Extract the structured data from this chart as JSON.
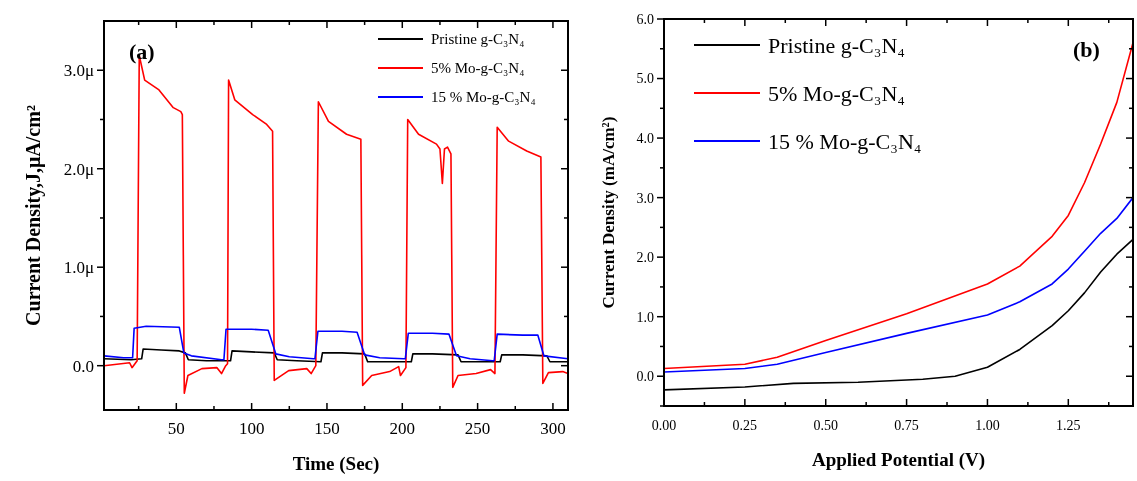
{
  "chart_data": [
    {
      "type": "line",
      "xlabel": "Time (Sec)",
      "ylabel": "Current Density,J,μA/cm²",
      "annotations": [
        "(a)"
      ],
      "legend": "top right",
      "xlim": [
        2,
        310
      ],
      "ylim": [
        -0.45,
        3.5
      ],
      "xticks": [
        {
          "value": 25,
          "label": null
        },
        50,
        {
          "value": 75,
          "label": null
        },
        100,
        {
          "value": 125,
          "label": null
        },
        150,
        {
          "value": 175,
          "label": null
        },
        200,
        {
          "value": 225,
          "label": null
        },
        250,
        {
          "value": 275,
          "label": null
        },
        300
      ],
      "yticks": [
        {
          "value": 0,
          "label": "0.0"
        },
        {
          "value": 0.5,
          "label": null
        },
        {
          "value": 1,
          "label": "1.0μ"
        },
        {
          "value": 1.5,
          "label": null
        },
        {
          "value": 2,
          "label": "2.0μ"
        },
        {
          "value": 2.5,
          "label": null
        },
        {
          "value": 3,
          "label": "3.0μ"
        }
      ],
      "series": [
        {
          "name": "Pristine g-C₃N₄",
          "color": "#000000",
          "x": [
            2,
            20,
            27,
            28,
            40,
            52,
            56,
            58,
            70,
            86,
            87,
            100,
            115,
            117,
            130,
            146,
            147,
            160,
            175,
            177,
            190,
            206,
            207,
            220,
            237,
            239,
            250,
            265,
            266,
            280,
            296,
            298,
            310
          ],
          "values": [
            0.07,
            0.06,
            0.07,
            0.17,
            0.16,
            0.15,
            0.13,
            0.06,
            0.05,
            0.05,
            0.15,
            0.14,
            0.13,
            0.06,
            0.05,
            0.04,
            0.13,
            0.13,
            0.12,
            0.04,
            0.04,
            0.04,
            0.12,
            0.12,
            0.11,
            0.04,
            0.04,
            0.04,
            0.11,
            0.11,
            0.1,
            0.04,
            0.04
          ]
        },
        {
          "name": "5% Mo-g-C₃N₄",
          "color": "#ff0000",
          "x": [
            2,
            19,
            20.6,
            24,
            25.4,
            29,
            38.5,
            48,
            53,
            54,
            55.3,
            57.7,
            67,
            77,
            80,
            82.8,
            84,
            84.7,
            88.8,
            100.7,
            110,
            113.9,
            115,
            124.6,
            136.6,
            139.5,
            142.6,
            144.3,
            151,
            163,
            172.5,
            173.7,
            179.7,
            191.6,
            197.6,
            198.8,
            202.4,
            203.6,
            210.8,
            222.7,
            225,
            226.6,
            228,
            230,
            232.3,
            233.5,
            237,
            249,
            258.6,
            261.5,
            263,
            270.6,
            282.6,
            292,
            293.3,
            297,
            306.5,
            310
          ],
          "values": [
            0,
            0.03,
            -0.02,
            0.05,
            3.15,
            2.9,
            2.8,
            2.62,
            2.58,
            2.55,
            -0.28,
            -0.1,
            -0.03,
            -0.02,
            -0.08,
            0,
            0.02,
            2.9,
            2.7,
            2.55,
            2.45,
            2.38,
            -0.15,
            -0.05,
            -0.03,
            -0.08,
            0,
            2.68,
            2.48,
            2.35,
            2.3,
            -0.2,
            -0.1,
            -0.06,
            -0.01,
            -0.1,
            -0.02,
            2.5,
            2.35,
            2.25,
            2.2,
            1.85,
            2.2,
            2.22,
            2.15,
            -0.22,
            -0.1,
            -0.08,
            -0.04,
            -0.08,
            2.42,
            2.28,
            2.18,
            2.12,
            -0.18,
            -0.07,
            -0.06,
            -0.08
          ]
        },
        {
          "name": "15 % Mo-g-C₃N₄",
          "color": "#0000ff",
          "x": [
            2,
            15,
            21,
            22,
            30,
            52,
            55,
            60,
            80,
            81.6,
            83,
            100,
            111,
            116,
            125,
            141,
            142,
            144,
            160,
            170,
            175,
            185,
            201,
            202,
            204,
            220,
            231,
            236,
            245,
            260,
            261,
            263,
            280,
            290,
            294,
            310
          ],
          "values": [
            0.1,
            0.08,
            0.08,
            0.38,
            0.4,
            0.39,
            0.13,
            0.1,
            0.06,
            0.06,
            0.37,
            0.37,
            0.36,
            0.12,
            0.09,
            0.07,
            0.07,
            0.35,
            0.35,
            0.34,
            0.11,
            0.08,
            0.07,
            0.07,
            0.33,
            0.33,
            0.32,
            0.1,
            0.07,
            0.05,
            0.05,
            0.32,
            0.31,
            0.31,
            0.1,
            0.07
          ]
        }
      ]
    },
    {
      "type": "line",
      "xlabel": "Applied Potential (V)",
      "ylabel": "Current Density (mA/cm²)",
      "annotations": [
        "(b)"
      ],
      "legend": "top left",
      "xlim": [
        0,
        1.45
      ],
      "ylim": [
        -0.5,
        6
      ],
      "xticks": [
        {
          "value": 0,
          "label": "0.00"
        },
        {
          "value": 0.125,
          "label": null
        },
        0.25,
        {
          "value": 0.375,
          "label": null
        },
        {
          "value": 0.5,
          "label": "0.50"
        },
        {
          "value": 0.625,
          "label": null
        },
        0.75,
        {
          "value": 0.875,
          "label": null
        },
        {
          "value": 1,
          "label": "1.00"
        },
        {
          "value": 1.125,
          "label": null
        },
        1.25,
        {
          "value": 1.375,
          "label": null
        }
      ],
      "yticks": [
        {
          "value": -0.5,
          "label": null
        },
        {
          "value": 0,
          "label": "0.0"
        },
        {
          "value": 0.5,
          "label": null
        },
        {
          "value": 1,
          "label": "1.0"
        },
        {
          "value": 1.5,
          "label": null
        },
        {
          "value": 2,
          "label": "2.0"
        },
        {
          "value": 2.5,
          "label": null
        },
        {
          "value": 3,
          "label": "3.0"
        },
        {
          "value": 3.5,
          "label": null
        },
        {
          "value": 4,
          "label": "4.0"
        },
        {
          "value": 4.5,
          "label": null
        },
        {
          "value": 5,
          "label": "5.0"
        },
        {
          "value": 5.5,
          "label": null
        },
        {
          "value": 6,
          "label": "6.0"
        }
      ],
      "series": [
        {
          "name": "Pristine g-C₃N₄",
          "color": "#000000",
          "x": [
            0,
            0.25,
            0.4,
            0.6,
            0.8,
            0.9,
            1.0,
            1.1,
            1.2,
            1.25,
            1.3,
            1.35,
            1.4,
            1.45
          ],
          "values": [
            -0.23,
            -0.18,
            -0.12,
            -0.1,
            -0.05,
            0,
            0.15,
            0.45,
            0.85,
            1.1,
            1.4,
            1.75,
            2.05,
            2.3
          ]
        },
        {
          "name": "5% Mo-g-C₃N₄",
          "color": "#ff0000",
          "x": [
            0,
            0.25,
            0.35,
            0.5,
            0.75,
            1.0,
            1.1,
            1.2,
            1.25,
            1.3,
            1.35,
            1.4,
            1.45
          ],
          "values": [
            0.13,
            0.2,
            0.32,
            0.6,
            1.05,
            1.55,
            1.85,
            2.35,
            2.7,
            3.25,
            3.9,
            4.6,
            5.6
          ]
        },
        {
          "name": "15 % Mo-g-C₃N₄",
          "color": "#0000ff",
          "x": [
            0,
            0.25,
            0.35,
            0.5,
            0.75,
            1.0,
            1.1,
            1.2,
            1.25,
            1.3,
            1.35,
            1.4,
            1.45
          ],
          "values": [
            0.07,
            0.13,
            0.2,
            0.4,
            0.72,
            1.03,
            1.25,
            1.55,
            1.8,
            2.1,
            2.4,
            2.65,
            3.0
          ]
        }
      ]
    }
  ]
}
